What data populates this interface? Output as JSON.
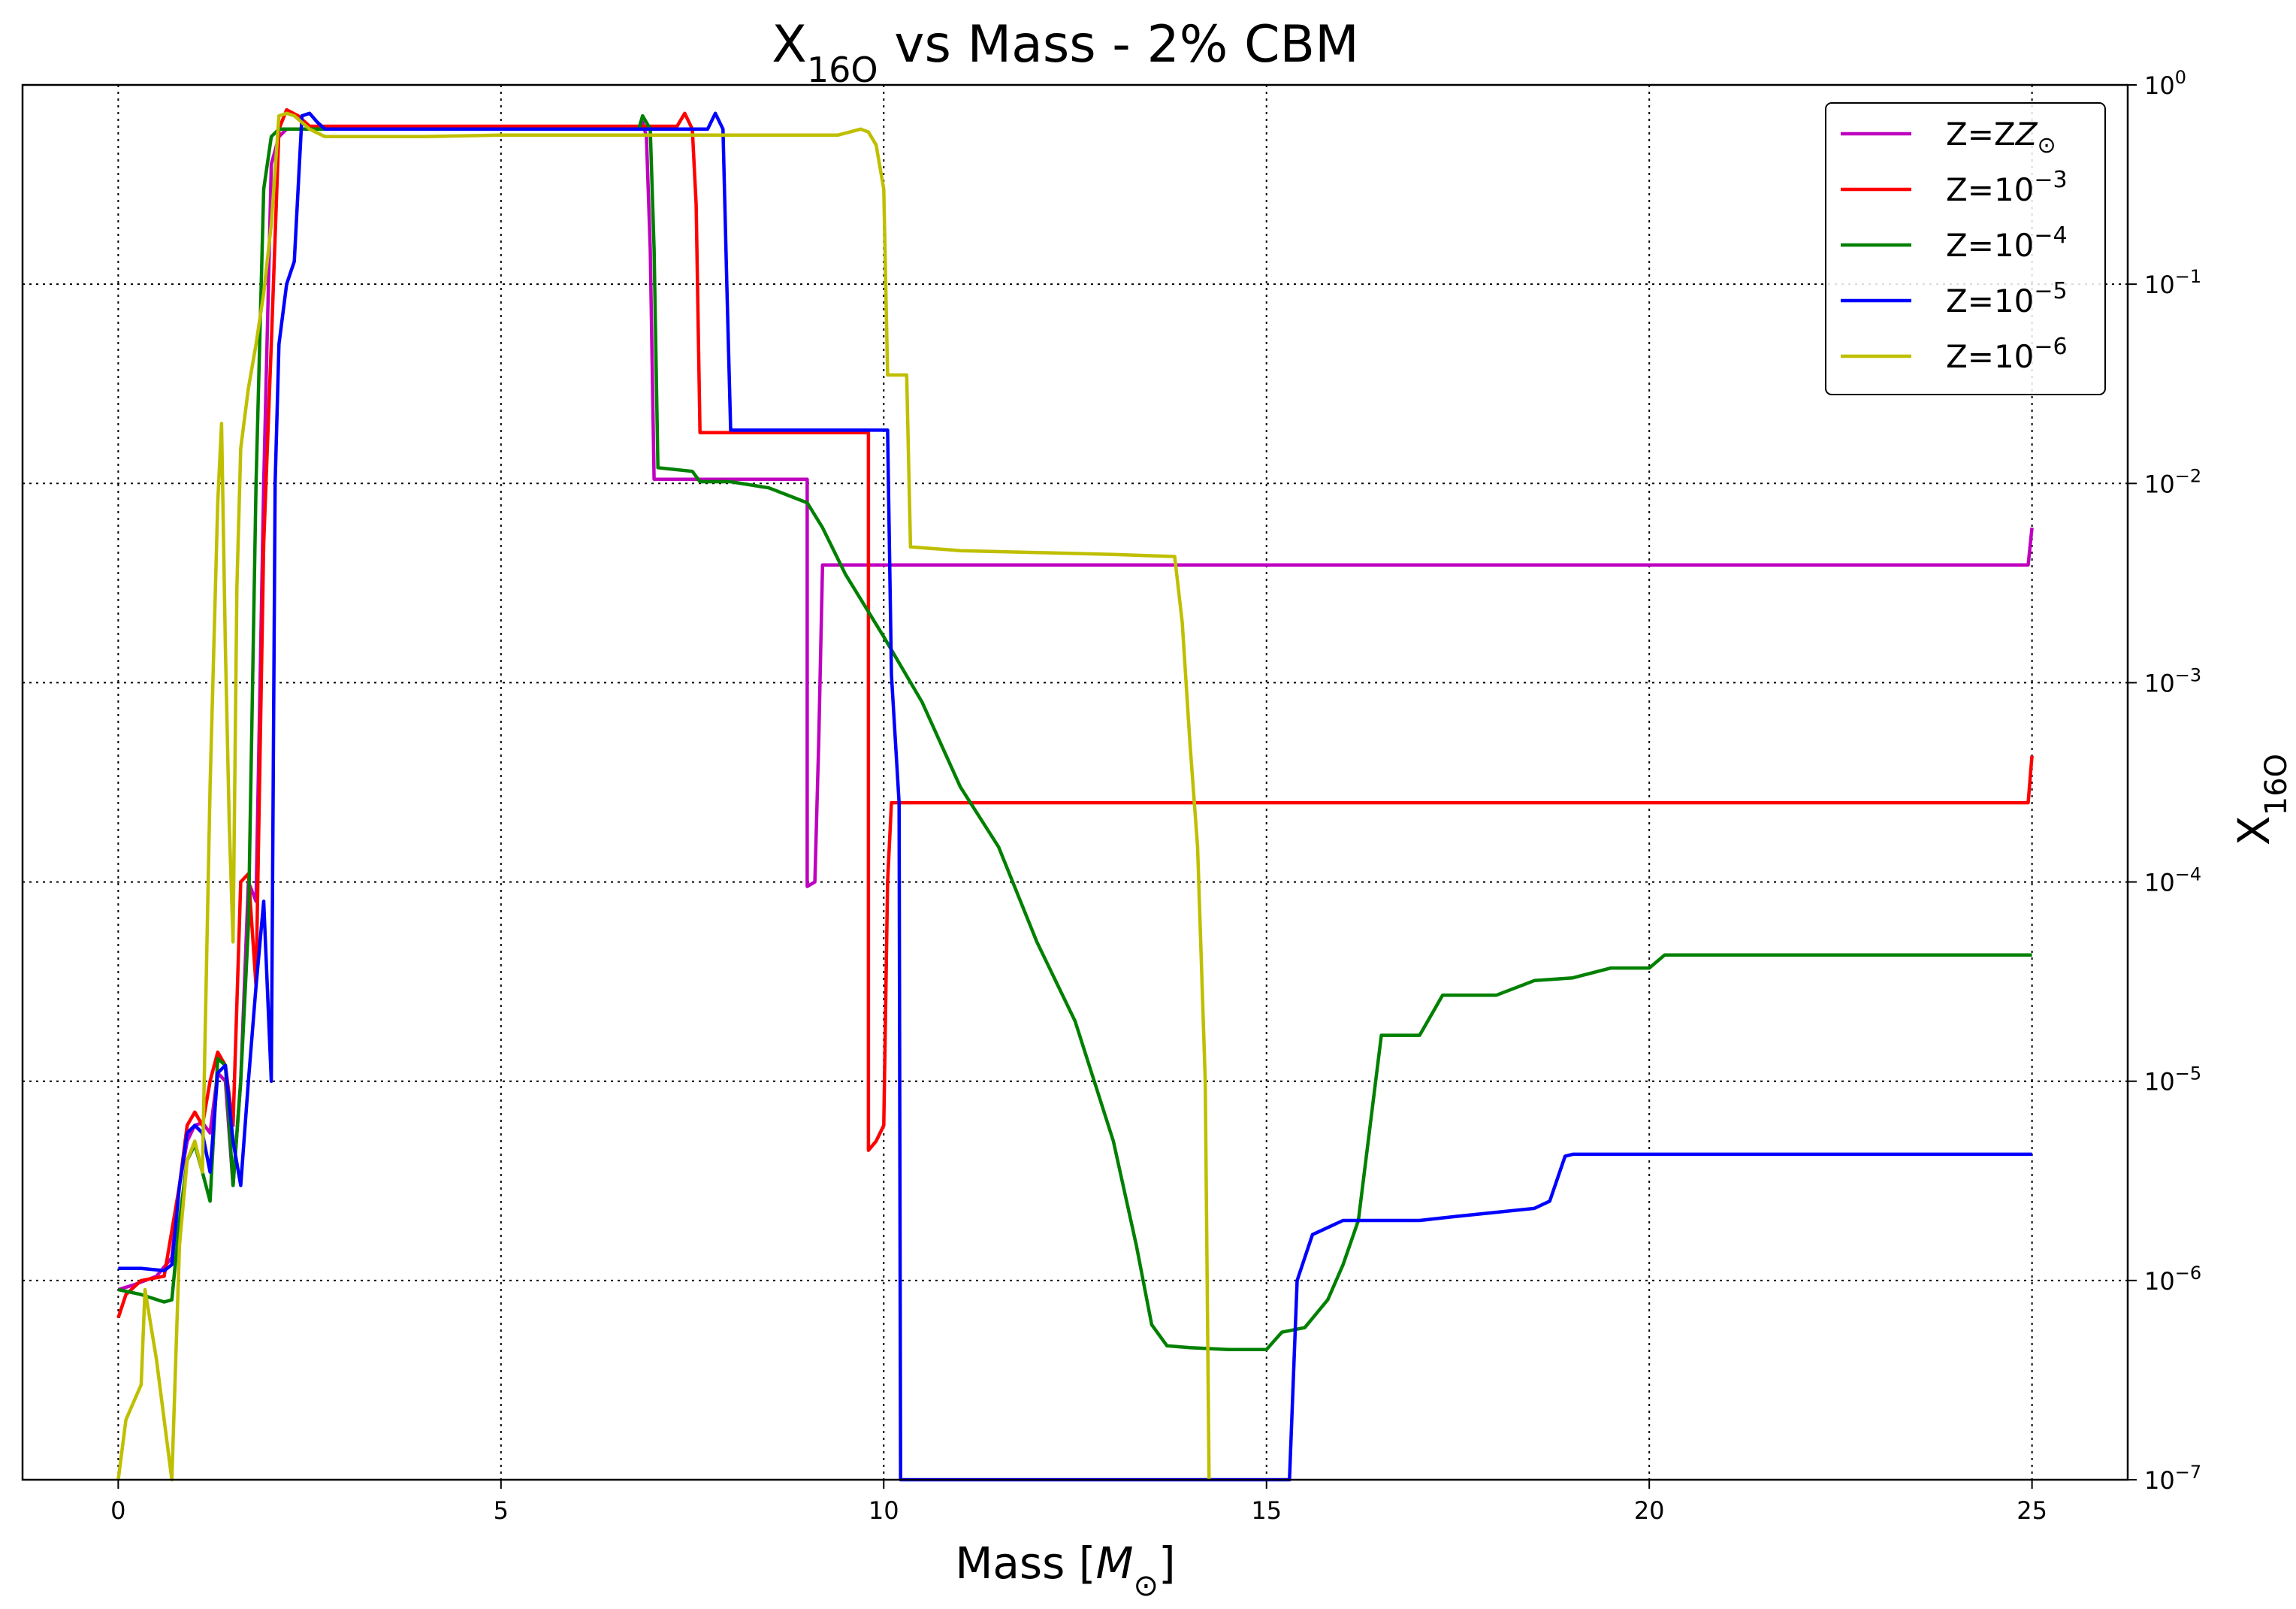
{
  "chart_data": {
    "type": "line",
    "title": {
      "base": "X",
      "sub": "16O",
      "rest": " vs Mass - 2% CBM"
    },
    "xlabel": {
      "text": "Mass [",
      "sym": "M",
      "sub": "⊙",
      "end": "]"
    },
    "ylabel": {
      "base": "X",
      "sub": "16O"
    },
    "xlim": [
      -1.25,
      26.25
    ],
    "ylim": [
      1e-07,
      1
    ],
    "yscale": "log",
    "y_axis_side": "right",
    "grid": "dotted",
    "legend_position": "top-right",
    "x_ticks": [
      "0",
      "5",
      "10",
      "15",
      "20",
      "25"
    ],
    "x_tick_values": [
      0,
      5,
      10,
      15,
      20,
      25
    ],
    "y_ticks": [
      {
        "value": 1,
        "base": "10",
        "exp": "0"
      },
      {
        "value": 0.1,
        "base": "10",
        "exp": "−1"
      },
      {
        "value": 0.01,
        "base": "10",
        "exp": "−2"
      },
      {
        "value": 0.001,
        "base": "10",
        "exp": "−3"
      },
      {
        "value": 0.0001,
        "base": "10",
        "exp": "−4"
      },
      {
        "value": 1e-05,
        "base": "10",
        "exp": "−5"
      },
      {
        "value": 1e-06,
        "base": "10",
        "exp": "−6"
      },
      {
        "value": 1e-07,
        "base": "10",
        "exp": "−7"
      }
    ],
    "series": [
      {
        "name": "Z=Z",
        "name_sub": "⊙",
        "name_sup": "",
        "color": "#bf00bf",
        "points": [
          [
            0,
            9e-07
          ],
          [
            0.2,
            9.5e-07
          ],
          [
            0.5,
            1.05e-06
          ],
          [
            0.7,
            1.3e-06
          ],
          [
            0.8,
            3e-06
          ],
          [
            0.9,
            5e-06
          ],
          [
            1.0,
            6e-06
          ],
          [
            1.1,
            6.2e-06
          ],
          [
            1.2,
            5.5e-06
          ],
          [
            1.3,
            1.1e-05
          ],
          [
            1.4,
            1e-05
          ],
          [
            1.5,
            3e-06
          ],
          [
            1.6,
            1e-05
          ],
          [
            1.7,
            0.0001
          ],
          [
            1.8,
            8e-05
          ],
          [
            1.9,
            0.01
          ],
          [
            2.0,
            0.4
          ],
          [
            2.1,
            0.55
          ],
          [
            2.2,
            0.6
          ],
          [
            2.5,
            0.6
          ],
          [
            3,
            0.6
          ],
          [
            4,
            0.6
          ],
          [
            5,
            0.6
          ],
          [
            6,
            0.6
          ],
          [
            6.8,
            0.6
          ],
          [
            6.85,
            0.65
          ],
          [
            6.9,
            0.55
          ],
          [
            6.95,
            0.15
          ],
          [
            7.0,
            0.0105
          ],
          [
            8,
            0.0105
          ],
          [
            9.0,
            0.0105
          ],
          [
            9.0,
            9.5e-05
          ],
          [
            9.1,
            0.0001
          ],
          [
            9.15,
            0.0005
          ],
          [
            9.2,
            0.0039
          ],
          [
            10,
            0.0039
          ],
          [
            15,
            0.0039
          ],
          [
            20,
            0.0039
          ],
          [
            24.95,
            0.0039
          ],
          [
            25,
            0.006
          ]
        ]
      },
      {
        "name": "Z=10",
        "name_sub": "",
        "name_sup": "−3",
        "color": "#ff0000",
        "points": [
          [
            0,
            6.5e-07
          ],
          [
            0.1,
            8.5e-07
          ],
          [
            0.3,
            1e-06
          ],
          [
            0.6,
            1.05e-06
          ],
          [
            0.8,
            3e-06
          ],
          [
            0.9,
            6e-06
          ],
          [
            1.0,
            7e-06
          ],
          [
            1.1,
            6e-06
          ],
          [
            1.2,
            1e-05
          ],
          [
            1.3,
            1.4e-05
          ],
          [
            1.4,
            1.2e-05
          ],
          [
            1.5,
            6e-06
          ],
          [
            1.6,
            0.0001
          ],
          [
            1.7,
            0.00011
          ],
          [
            1.8,
            3e-05
          ],
          [
            1.9,
            0.005
          ],
          [
            2.0,
            0.05
          ],
          [
            2.1,
            0.6
          ],
          [
            2.2,
            0.75
          ],
          [
            2.35,
            0.7
          ],
          [
            2.5,
            0.62
          ],
          [
            3,
            0.62
          ],
          [
            5,
            0.62
          ],
          [
            7,
            0.62
          ],
          [
            7.3,
            0.62
          ],
          [
            7.4,
            0.72
          ],
          [
            7.5,
            0.6
          ],
          [
            7.55,
            0.25
          ],
          [
            7.6,
            0.018
          ],
          [
            8,
            0.018
          ],
          [
            9.8,
            0.018
          ],
          [
            9.8,
            4.5e-06
          ],
          [
            9.9,
            5e-06
          ],
          [
            10.0,
            6e-06
          ],
          [
            10.05,
            0.0001
          ],
          [
            10.1,
            0.00025
          ],
          [
            11,
            0.00025
          ],
          [
            15,
            0.00025
          ],
          [
            20,
            0.00025
          ],
          [
            24.95,
            0.00025
          ],
          [
            25,
            0.00043
          ]
        ]
      },
      {
        "name": "Z=10",
        "name_sub": "",
        "name_sup": "−4",
        "color": "#008000",
        "points": [
          [
            0,
            9e-07
          ],
          [
            0.3,
            8.5e-07
          ],
          [
            0.6,
            7.8e-07
          ],
          [
            0.7,
            8e-07
          ],
          [
            0.8,
            2e-06
          ],
          [
            0.9,
            4e-06
          ],
          [
            1.0,
            4.8e-06
          ],
          [
            1.1,
            3.5e-06
          ],
          [
            1.2,
            2.5e-06
          ],
          [
            1.3,
            1.3e-05
          ],
          [
            1.4,
            1.2e-05
          ],
          [
            1.5,
            3e-06
          ],
          [
            1.6,
            1e-05
          ],
          [
            1.7,
            6e-05
          ],
          [
            1.8,
            0.01
          ],
          [
            1.9,
            0.3
          ],
          [
            2.0,
            0.55
          ],
          [
            2.1,
            0.6
          ],
          [
            2.2,
            0.6
          ],
          [
            3,
            0.6
          ],
          [
            5,
            0.6
          ],
          [
            6.8,
            0.6
          ],
          [
            6.85,
            0.7
          ],
          [
            6.95,
            0.6
          ],
          [
            7.0,
            0.15
          ],
          [
            7.05,
            0.012
          ],
          [
            7.5,
            0.0115
          ],
          [
            7.6,
            0.0102
          ],
          [
            8,
            0.0102
          ],
          [
            8.5,
            0.0095
          ],
          [
            9.0,
            0.008
          ],
          [
            9.2,
            0.006
          ],
          [
            9.5,
            0.0035
          ],
          [
            10,
            0.0017
          ],
          [
            10.5,
            0.0008
          ],
          [
            11,
            0.0003
          ],
          [
            11.5,
            0.00015
          ],
          [
            12,
            5e-05
          ],
          [
            12.5,
            2e-05
          ],
          [
            13,
            5e-06
          ],
          [
            13.3,
            1.5e-06
          ],
          [
            13.5,
            6e-07
          ],
          [
            13.7,
            4.7e-07
          ],
          [
            14,
            4.6e-07
          ],
          [
            14.5,
            4.5e-07
          ],
          [
            15,
            4.5e-07
          ],
          [
            15.2,
            5.5e-07
          ],
          [
            15.5,
            5.8e-07
          ],
          [
            15.8,
            8e-07
          ],
          [
            16,
            1.2e-06
          ],
          [
            16.2,
            2e-06
          ],
          [
            16.5,
            1.7e-05
          ],
          [
            17,
            1.7e-05
          ],
          [
            17.3,
            2.7e-05
          ],
          [
            18,
            2.7e-05
          ],
          [
            18.5,
            3.2e-05
          ],
          [
            19,
            3.3e-05
          ],
          [
            19.5,
            3.7e-05
          ],
          [
            20,
            3.7e-05
          ],
          [
            20.2,
            4.3e-05
          ],
          [
            22,
            4.3e-05
          ],
          [
            25,
            4.3e-05
          ]
        ]
      },
      {
        "name": "Z=10",
        "name_sub": "",
        "name_sup": "−5",
        "color": "#0000ff",
        "points": [
          [
            0,
            1.15e-06
          ],
          [
            0.3,
            1.15e-06
          ],
          [
            0.6,
            1.12e-06
          ],
          [
            0.7,
            1.2e-06
          ],
          [
            0.8,
            3e-06
          ],
          [
            0.9,
            5.5e-06
          ],
          [
            1.0,
            6e-06
          ],
          [
            1.1,
            5.5e-06
          ],
          [
            1.2,
            3.5e-06
          ],
          [
            1.3,
            1.1e-05
          ],
          [
            1.4,
            1.2e-05
          ],
          [
            1.5,
            5e-06
          ],
          [
            1.6,
            3e-06
          ],
          [
            1.7,
            1e-05
          ],
          [
            1.8,
            3e-05
          ],
          [
            1.9,
            8e-05
          ],
          [
            2.0,
            1e-05
          ],
          [
            2.05,
            0.01
          ],
          [
            2.1,
            0.05
          ],
          [
            2.2,
            0.1
          ],
          [
            2.3,
            0.13
          ],
          [
            2.4,
            0.7
          ],
          [
            2.5,
            0.72
          ],
          [
            2.6,
            0.65
          ],
          [
            2.7,
            0.6
          ],
          [
            3,
            0.6
          ],
          [
            5,
            0.6
          ],
          [
            7.7,
            0.6
          ],
          [
            7.8,
            0.72
          ],
          [
            7.9,
            0.6
          ],
          [
            7.95,
            0.1
          ],
          [
            8.0,
            0.0185
          ],
          [
            9,
            0.0185
          ],
          [
            10.05,
            0.0185
          ],
          [
            10.1,
            0.0011
          ],
          [
            10.2,
            0.00025
          ],
          [
            10.22,
            1e-07
          ],
          [
            15.3,
            1e-07
          ],
          [
            15.4,
            1e-06
          ],
          [
            15.6,
            1.7e-06
          ],
          [
            16,
            2e-06
          ],
          [
            17,
            2e-06
          ],
          [
            17.5,
            2.1e-06
          ],
          [
            18.5,
            2.3e-06
          ],
          [
            18.7,
            2.5e-06
          ],
          [
            18.9,
            4.2e-06
          ],
          [
            19,
            4.3e-06
          ],
          [
            20,
            4.3e-06
          ],
          [
            25,
            4.3e-06
          ]
        ]
      },
      {
        "name": "Z=10",
        "name_sub": "",
        "name_sup": "−6",
        "color": "#bfbf00",
        "points": [
          [
            0,
            1e-07
          ],
          [
            0.1,
            2e-07
          ],
          [
            0.3,
            3e-07
          ],
          [
            0.35,
            9e-07
          ],
          [
            0.5,
            4e-07
          ],
          [
            0.6,
            2e-07
          ],
          [
            0.7,
            1e-07
          ],
          [
            0.8,
            1.5e-06
          ],
          [
            0.9,
            4e-06
          ],
          [
            1.0,
            5e-06
          ],
          [
            1.1,
            3.5e-06
          ],
          [
            1.2,
            0.0003
          ],
          [
            1.3,
            0.008
          ],
          [
            1.35,
            0.02
          ],
          [
            1.4,
            0.0015
          ],
          [
            1.45,
            0.0002
          ],
          [
            1.5,
            5e-05
          ],
          [
            1.55,
            0.003
          ],
          [
            1.6,
            0.015
          ],
          [
            1.7,
            0.03
          ],
          [
            1.8,
            0.05
          ],
          [
            1.9,
            0.09
          ],
          [
            2.0,
            0.2
          ],
          [
            2.1,
            0.7
          ],
          [
            2.2,
            0.72
          ],
          [
            2.3,
            0.7
          ],
          [
            2.5,
            0.6
          ],
          [
            2.7,
            0.55
          ],
          [
            3,
            0.55
          ],
          [
            4,
            0.55
          ],
          [
            5,
            0.56
          ],
          [
            6,
            0.56
          ],
          [
            7,
            0.56
          ],
          [
            8,
            0.56
          ],
          [
            9,
            0.56
          ],
          [
            9.4,
            0.56
          ],
          [
            9.7,
            0.6
          ],
          [
            9.8,
            0.58
          ],
          [
            9.9,
            0.5
          ],
          [
            10.0,
            0.3
          ],
          [
            10.05,
            0.035
          ],
          [
            10.3,
            0.035
          ],
          [
            10.35,
            0.0048
          ],
          [
            11,
            0.0046
          ],
          [
            12,
            0.0045
          ],
          [
            13,
            0.0044
          ],
          [
            13.8,
            0.0043
          ],
          [
            13.9,
            0.002
          ],
          [
            14.0,
            0.0005
          ],
          [
            14.1,
            0.00015
          ],
          [
            14.2,
            1e-05
          ],
          [
            14.25,
            1e-07
          ]
        ]
      }
    ]
  }
}
